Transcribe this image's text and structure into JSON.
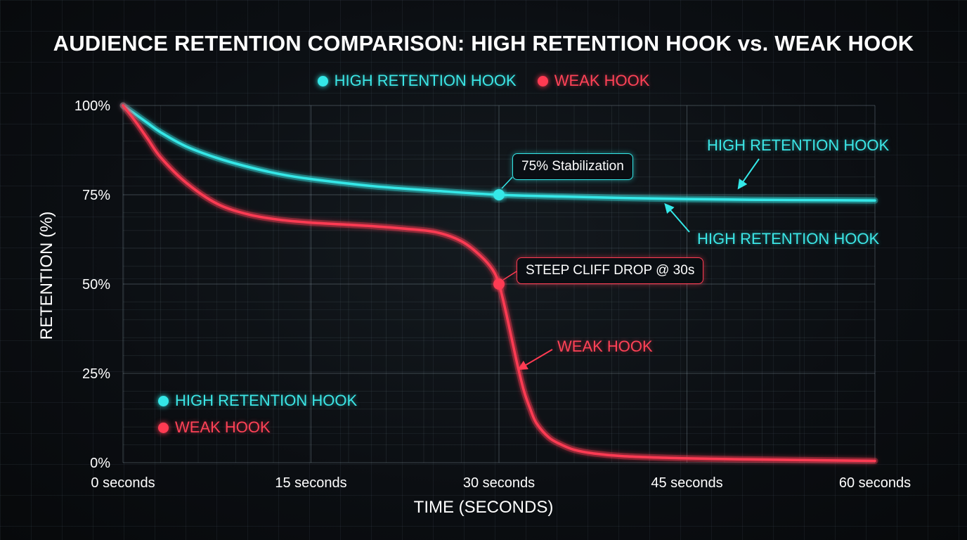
{
  "chart_data": {
    "type": "line",
    "title": "AUDIENCE RETENTION COMPARISON: HIGH RETENTION HOOK vs. WEAK HOOK",
    "xlabel": "TIME (SECONDS)",
    "ylabel": "RETENTION (%)",
    "x_ticks": [
      "0 seconds",
      "15 seconds",
      "30 seconds",
      "45 seconds",
      "60 seconds"
    ],
    "y_ticks": [
      "0%",
      "25%",
      "50%",
      "75%",
      "100%"
    ],
    "xlim": [
      0,
      60
    ],
    "ylim": [
      0,
      100
    ],
    "grid": true,
    "legend": [
      {
        "label": "HIGH RETENTION HOOK",
        "color": "#34e8e8"
      },
      {
        "label": "WEAK HOOK",
        "color": "#ff3b52"
      }
    ],
    "legend_placement": "top-center and bottom-left",
    "series": [
      {
        "name": "HIGH RETENTION HOOK",
        "color": "#34e8e8",
        "x": [
          0,
          1,
          2,
          3,
          5,
          7.5,
          10,
          12.5,
          15,
          20,
          25,
          30,
          35,
          40,
          45,
          50,
          55,
          60
        ],
        "y": [
          100,
          97.5,
          95,
          92.5,
          88.6,
          85.3,
          82.8,
          80.8,
          79.4,
          77.4,
          76.1,
          75.0,
          74.5,
          74.1,
          73.8,
          73.6,
          73.5,
          73.4
        ]
      },
      {
        "name": "WEAK HOOK",
        "color": "#ff3b52",
        "x": [
          0,
          1,
          2,
          3,
          5,
          7.5,
          10,
          12.5,
          15,
          17.5,
          20,
          22.5,
          25,
          27,
          28.5,
          29.5,
          30,
          30.5,
          31,
          31.5,
          32,
          32.5,
          33,
          34,
          35,
          36,
          37.5,
          40,
          45,
          50,
          55,
          60
        ],
        "y": [
          100,
          95.5,
          90.5,
          85.5,
          78.5,
          72.5,
          69.5,
          68.0,
          67.2,
          66.7,
          66.2,
          65.5,
          64.5,
          62.0,
          58.0,
          54.0,
          50.0,
          43.0,
          35.0,
          27.0,
          20.0,
          15.0,
          11.0,
          7.0,
          5.0,
          3.6,
          2.6,
          1.8,
          1.2,
          0.9,
          0.7,
          0.5
        ]
      }
    ],
    "annotations": [
      {
        "text": "75% Stabilization",
        "x": 30,
        "y": 75,
        "series": "HIGH RETENTION HOOK"
      },
      {
        "text": "STEEP CLIFF DROP @ 30s",
        "x": 30,
        "y": 50,
        "series": "WEAK HOOK"
      }
    ],
    "line_labels": [
      {
        "text": "HIGH RETENTION HOOK",
        "series": "HIGH RETENTION HOOK"
      },
      {
        "text": "HIGH RETENTION HOOK",
        "series": "HIGH RETENTION HOOK"
      },
      {
        "text": "WEAK HOOK",
        "series": "WEAK HOOK"
      }
    ]
  }
}
